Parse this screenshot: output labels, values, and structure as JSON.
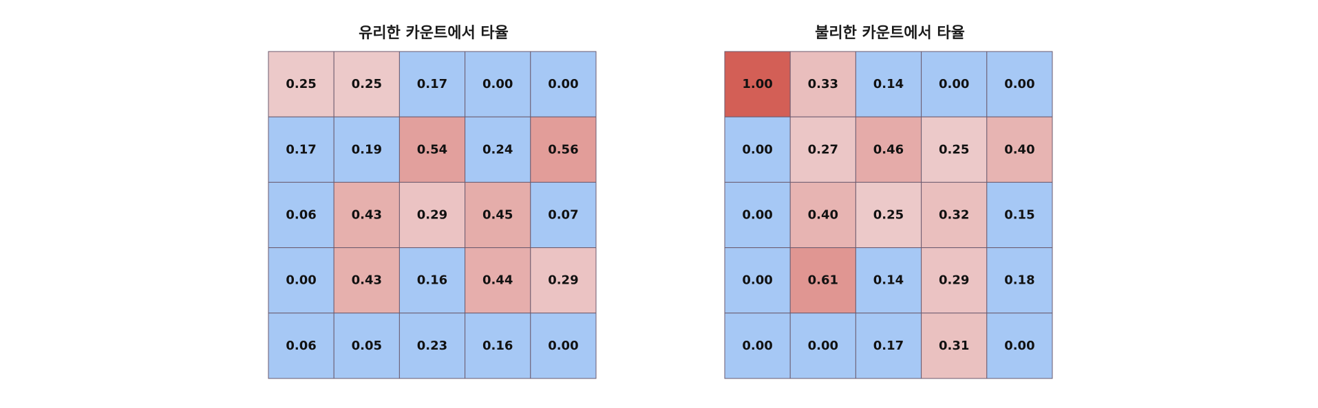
{
  "chart_data": [
    {
      "type": "heatmap",
      "title": "유리한 카운트에서 타율",
      "rows": [
        [
          0.25,
          0.25,
          0.17,
          0.0,
          0.0
        ],
        [
          0.17,
          0.19,
          0.54,
          0.24,
          0.56
        ],
        [
          0.06,
          0.43,
          0.29,
          0.45,
          0.07
        ],
        [
          0.0,
          0.43,
          0.16,
          0.44,
          0.29
        ],
        [
          0.06,
          0.05,
          0.23,
          0.16,
          0.0
        ]
      ],
      "labels": [
        [
          "0.25",
          "0.25",
          "0.17",
          "0.00",
          "0.00"
        ],
        [
          "0.17",
          "0.19",
          "0.54",
          "0.24",
          "0.56"
        ],
        [
          "0.06",
          "0.43",
          "0.29",
          "0.45",
          "0.07"
        ],
        [
          "0.00",
          "0.43",
          "0.16",
          "0.44",
          "0.29"
        ],
        [
          "0.06",
          "0.05",
          "0.23",
          "0.16",
          "0.00"
        ]
      ],
      "threshold": 0.25,
      "grid": true
    },
    {
      "type": "heatmap",
      "title": "불리한 카운트에서 타율",
      "rows": [
        [
          1.0,
          0.33,
          0.14,
          0.0,
          0.0
        ],
        [
          0.0,
          0.27,
          0.46,
          0.25,
          0.4
        ],
        [
          0.0,
          0.4,
          0.25,
          0.32,
          0.15
        ],
        [
          0.0,
          0.61,
          0.14,
          0.29,
          0.18
        ],
        [
          0.0,
          0.0,
          0.17,
          0.31,
          0.0
        ]
      ],
      "labels": [
        [
          "1.00",
          "0.33",
          "0.14",
          "0.00",
          "0.00"
        ],
        [
          "0.00",
          "0.27",
          "0.46",
          "0.25",
          "0.40"
        ],
        [
          "0.00",
          "0.40",
          "0.25",
          "0.32",
          "0.15"
        ],
        [
          "0.00",
          "0.61",
          "0.14",
          "0.29",
          "0.18"
        ],
        [
          "0.00",
          "0.00",
          "0.17",
          "0.31",
          "0.00"
        ]
      ],
      "threshold": 0.25,
      "grid": true
    }
  ],
  "colors": {
    "low": "#a6c8f5",
    "high_light": "#ecc9c9",
    "high_dark": "#d35f56",
    "cell_border": "#6b5a6e",
    "label_text": "#111111"
  }
}
